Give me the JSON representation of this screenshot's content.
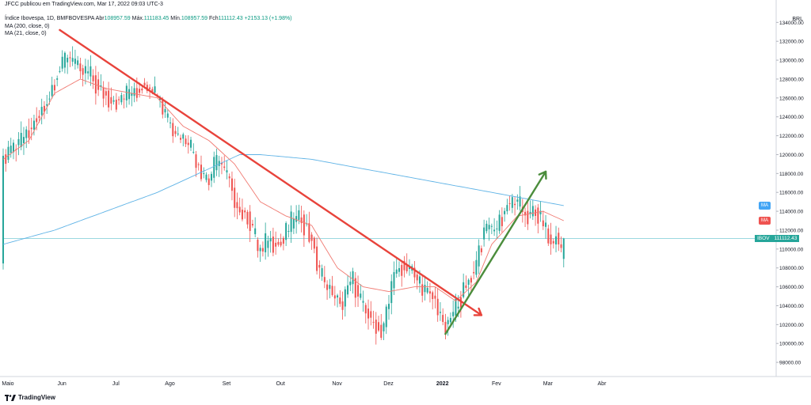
{
  "header": {
    "credit": "JFCC publicou em TradingView.com, Mar 17, 2022 09:03 UTC-3",
    "symbol": "Índice Ibovespa, 1D, BMFBOVESPA",
    "open_label": "Abr",
    "open_value": "108957.59",
    "high_label": "Máx.",
    "high_value": "111183.45",
    "low_label": "Mín.",
    "low_value": "108957.59",
    "close_label": "Fch",
    "close_value": "111112.43",
    "change": "+2153.13 (+1.98%)",
    "ma200": "MA (200, close, 0)",
    "ma21": "MA (21, close, 0)"
  },
  "brand": "TradingView",
  "currency": "BRL",
  "tags": {
    "ma200": "MA",
    "ma21": "MA",
    "ibov_label": "IBOV",
    "ibov_value": "111112.43"
  },
  "colors": {
    "up": "#26a69a",
    "down": "#ef5350",
    "ma200": "#5fb3e6",
    "ma21": "#f07a72",
    "trend_down": "#e8433b",
    "trend_up": "#4b8d3c",
    "price_line": "#9ad8e0"
  },
  "chart_data": {
    "type": "candlestick",
    "x_ticks": [
      "Maio",
      "Jun",
      "Jul",
      "Ago",
      "Set",
      "Out",
      "Nov",
      "Dez",
      "2022",
      "Fev",
      "Mar",
      "Abr"
    ],
    "y_ticks": [
      98000,
      100000,
      102000,
      104000,
      106000,
      108000,
      110000,
      112000,
      114000,
      116000,
      118000,
      120000,
      122000,
      124000,
      126000,
      128000,
      130000,
      132000,
      134000
    ],
    "ylim": [
      96500,
      135200
    ],
    "x_range": [
      0,
      300
    ],
    "month_positions": [
      0,
      21,
      42,
      63,
      85,
      106,
      128,
      148,
      169,
      190,
      210,
      231
    ],
    "anchors": [
      [
        0,
        119500
      ],
      [
        8,
        121500
      ],
      [
        14,
        124000
      ],
      [
        18,
        126000
      ],
      [
        22,
        129000
      ],
      [
        26,
        130500
      ],
      [
        30,
        129000
      ],
      [
        34,
        128500
      ],
      [
        38,
        127000
      ],
      [
        44,
        125500
      ],
      [
        50,
        126500
      ],
      [
        56,
        127500
      ],
      [
        60,
        126500
      ],
      [
        64,
        124000
      ],
      [
        68,
        122000
      ],
      [
        72,
        121500
      ],
      [
        76,
        119000
      ],
      [
        80,
        117000
      ],
      [
        84,
        119500
      ],
      [
        88,
        117500
      ],
      [
        92,
        114000
      ],
      [
        96,
        113500
      ],
      [
        100,
        109500
      ],
      [
        104,
        111000
      ],
      [
        108,
        110500
      ],
      [
        112,
        112500
      ],
      [
        116,
        113500
      ],
      [
        120,
        111500
      ],
      [
        124,
        107000
      ],
      [
        128,
        105500
      ],
      [
        132,
        104000
      ],
      [
        136,
        107000
      ],
      [
        140,
        104000
      ],
      [
        144,
        102500
      ],
      [
        148,
        101000
      ],
      [
        152,
        107000
      ],
      [
        156,
        108500
      ],
      [
        160,
        107500
      ],
      [
        164,
        105500
      ],
      [
        168,
        105000
      ],
      [
        172,
        101500
      ],
      [
        176,
        103500
      ],
      [
        180,
        106000
      ],
      [
        184,
        108000
      ],
      [
        188,
        112500
      ],
      [
        192,
        112000
      ],
      [
        196,
        114500
      ],
      [
        200,
        115000
      ],
      [
        204,
        113500
      ],
      [
        208,
        114000
      ],
      [
        210,
        113000
      ],
      [
        212,
        111500
      ],
      [
        214,
        110500
      ],
      [
        216,
        111500
      ],
      [
        218,
        108957
      ]
    ],
    "last_candle": {
      "open": 108957.59,
      "high": 111183.45,
      "low": 108957.59,
      "close": 111112.43
    },
    "ma200_anchors": [
      [
        0,
        110500
      ],
      [
        20,
        112000
      ],
      [
        40,
        114000
      ],
      [
        60,
        116000
      ],
      [
        80,
        118500
      ],
      [
        92,
        120000
      ],
      [
        100,
        120000
      ],
      [
        120,
        119500
      ],
      [
        150,
        118000
      ],
      [
        180,
        116500
      ],
      [
        200,
        115500
      ],
      [
        218,
        114600
      ]
    ],
    "ma21_anchors": [
      [
        0,
        119500
      ],
      [
        10,
        121500
      ],
      [
        20,
        126500
      ],
      [
        30,
        128000
      ],
      [
        40,
        127000
      ],
      [
        50,
        126500
      ],
      [
        60,
        126000
      ],
      [
        70,
        123000
      ],
      [
        80,
        121500
      ],
      [
        90,
        119000
      ],
      [
        100,
        115000
      ],
      [
        110,
        113500
      ],
      [
        120,
        112500
      ],
      [
        130,
        108000
      ],
      [
        140,
        106000
      ],
      [
        150,
        105500
      ],
      [
        160,
        106000
      ],
      [
        168,
        106000
      ],
      [
        176,
        104500
      ],
      [
        184,
        106500
      ],
      [
        190,
        110500
      ],
      [
        200,
        113500
      ],
      [
        210,
        114000
      ],
      [
        218,
        113000
      ]
    ],
    "trendline_down": {
      "from": [
        22,
        133200
      ],
      "to": [
        186,
        103000
      ]
    },
    "trendline_up": {
      "from": [
        172,
        101000
      ],
      "to": [
        211,
        118200
      ]
    }
  }
}
